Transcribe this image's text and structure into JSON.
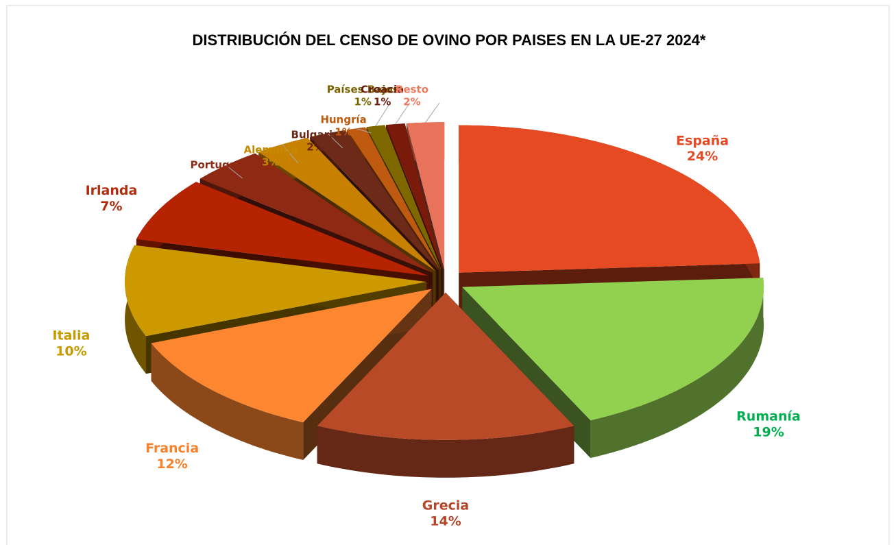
{
  "chart_data": {
    "type": "pie",
    "title": "DISTRIBUCIÓN DEL CENSO DE OVINO POR PAISES EN LA UE-27 2024*",
    "categories": [
      "España",
      "Rumanía",
      "Grecia",
      "Francia",
      "Italia",
      "Irlanda",
      "Portugal",
      "Alemania",
      "Bulgaria",
      "Hungría",
      "Países Bajos",
      "Croacia",
      "Resto"
    ],
    "values": [
      24,
      19,
      14,
      12,
      10,
      7,
      4,
      3,
      2,
      1,
      1,
      1,
      2
    ],
    "value_labels": [
      "24%",
      "19%",
      "14%",
      "12%",
      "10%",
      "7%",
      "4%",
      "3%",
      "2%",
      "1%",
      "1%",
      "1%",
      "2%"
    ],
    "colors": [
      "#e64a22",
      "#92d050",
      "#b84a28",
      "#fd8630",
      "#cc9a00",
      "#b52300",
      "#8e2a14",
      "#c88000",
      "#6e2a18",
      "#c05a10",
      "#7f6800",
      "#7a1a0a",
      "#e8735a"
    ],
    "label_colors": [
      "#e24b26",
      "#00b050",
      "#b5462a",
      "#f9812b",
      "#c99a00",
      "#b02c0e",
      "#8f2a14",
      "#c58a00",
      "#6b2817",
      "#c05a0b",
      "#7a6400",
      "#6b1a0c",
      "#f07a5e"
    ]
  }
}
